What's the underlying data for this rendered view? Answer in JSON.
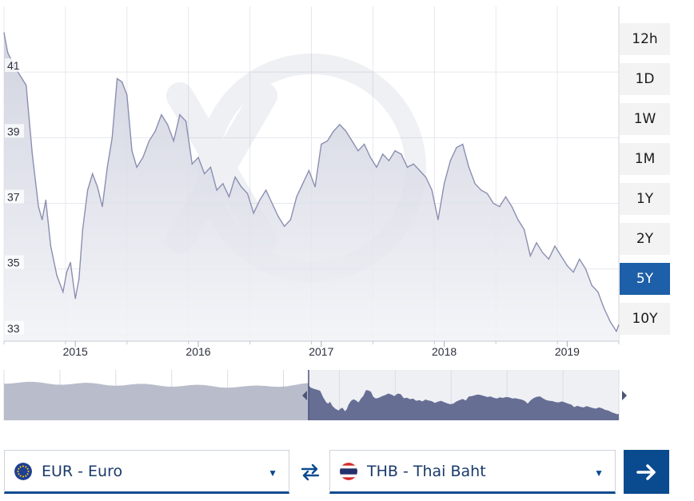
{
  "chart_data": {
    "type": "area",
    "title": "",
    "xlabel": "",
    "ylabel": "",
    "ylim": [
      32.8,
      43.0
    ],
    "xlim": [
      2014.42,
      2019.42
    ],
    "y_ticks": [
      "33",
      "35",
      "37",
      "39",
      "41"
    ],
    "y_tick_values": [
      33,
      35,
      37,
      39,
      41
    ],
    "x_ticks": [
      "2015",
      "2016",
      "2017",
      "2018",
      "2019"
    ],
    "x_tick_values": [
      2015,
      2016,
      2017,
      2018,
      2019
    ],
    "grid": true,
    "series": [
      {
        "x": [
          2014.42,
          2014.45,
          2014.5,
          2014.55,
          2014.6,
          2014.65,
          2014.7,
          2014.73,
          2014.76,
          2014.8,
          2014.85,
          2014.9,
          2014.93,
          2014.96,
          2015.0,
          2015.03,
          2015.06,
          2015.1,
          2015.14,
          2015.18,
          2015.22,
          2015.26,
          2015.3,
          2015.34,
          2015.38,
          2015.42,
          2015.46,
          2015.5,
          2015.55,
          2015.6,
          2015.65,
          2015.7,
          2015.75,
          2015.8,
          2015.85,
          2015.9,
          2015.95,
          2016.0,
          2016.05,
          2016.1,
          2016.15,
          2016.2,
          2016.25,
          2016.3,
          2016.35,
          2016.4,
          2016.45,
          2016.5,
          2016.55,
          2016.6,
          2016.65,
          2016.7,
          2016.75,
          2016.8,
          2016.85,
          2016.9,
          2016.95,
          2017.0,
          2017.05,
          2017.1,
          2017.15,
          2017.2,
          2017.25,
          2017.3,
          2017.35,
          2017.4,
          2017.45,
          2017.5,
          2017.55,
          2017.6,
          2017.65,
          2017.7,
          2017.75,
          2017.8,
          2017.85,
          2017.9,
          2017.95,
          2018.0,
          2018.05,
          2018.1,
          2018.15,
          2018.2,
          2018.25,
          2018.3,
          2018.35,
          2018.4,
          2018.45,
          2018.5,
          2018.55,
          2018.6,
          2018.65,
          2018.7,
          2018.75,
          2018.8,
          2018.85,
          2018.9,
          2018.95,
          2019.0,
          2019.05,
          2019.1,
          2019.15,
          2019.2,
          2019.25,
          2019.3,
          2019.35,
          2019.4,
          2019.42
        ],
        "y": [
          42.2,
          41.6,
          41.2,
          40.9,
          40.6,
          38.5,
          36.9,
          36.5,
          37.1,
          35.7,
          34.8,
          34.3,
          34.9,
          35.2,
          34.1,
          34.7,
          36.2,
          37.4,
          37.9,
          37.5,
          36.9,
          38.1,
          39.0,
          40.8,
          40.7,
          40.3,
          38.6,
          38.1,
          38.4,
          38.9,
          39.2,
          39.7,
          39.4,
          38.9,
          39.7,
          39.5,
          38.2,
          38.4,
          37.9,
          38.1,
          37.4,
          37.6,
          37.2,
          37.8,
          37.5,
          37.3,
          36.7,
          37.1,
          37.4,
          37.0,
          36.6,
          36.3,
          36.5,
          37.2,
          37.6,
          38.0,
          37.5,
          38.8,
          38.9,
          39.2,
          39.4,
          39.2,
          38.9,
          38.6,
          38.8,
          38.4,
          38.1,
          38.5,
          38.3,
          38.6,
          38.5,
          38.1,
          38.2,
          38.0,
          37.8,
          37.4,
          36.5,
          37.6,
          38.3,
          38.7,
          38.8,
          38.1,
          37.6,
          37.4,
          37.3,
          37.0,
          36.9,
          37.2,
          36.9,
          36.5,
          36.2,
          35.4,
          35.8,
          35.5,
          35.3,
          35.7,
          35.4,
          35.1,
          34.9,
          35.3,
          35.0,
          34.5,
          34.3,
          33.8,
          33.4,
          33.1,
          33.3
        ]
      }
    ],
    "navigator": {
      "x_range": [
        2009.5,
        2019.42
      ],
      "selected_from": 2014.42
    },
    "colors": {
      "area_fill": "#dddfe9",
      "line": "#8a8fb0",
      "nav_fill_light": "#b9bccb",
      "nav_fill_selected": "#666e94",
      "nav_bg_selected": "#e2e4ec",
      "active_range": "#1d5fa8",
      "brand_dark": "#0a4a8f"
    }
  },
  "range_buttons": [
    {
      "label": "12h",
      "active": false
    },
    {
      "label": "1D",
      "active": false
    },
    {
      "label": "1W",
      "active": false
    },
    {
      "label": "1M",
      "active": false
    },
    {
      "label": "1Y",
      "active": false
    },
    {
      "label": "2Y",
      "active": false
    },
    {
      "label": "5Y",
      "active": true
    },
    {
      "label": "10Y",
      "active": false
    }
  ],
  "converter": {
    "from": {
      "label": "EUR - Euro",
      "icon": "eu-flag-icon"
    },
    "to": {
      "label": "THB - Thai Baht",
      "icon": "thailand-flag-icon"
    },
    "swap_icon": "swap-arrows-icon",
    "go_icon": "arrow-right-icon"
  }
}
